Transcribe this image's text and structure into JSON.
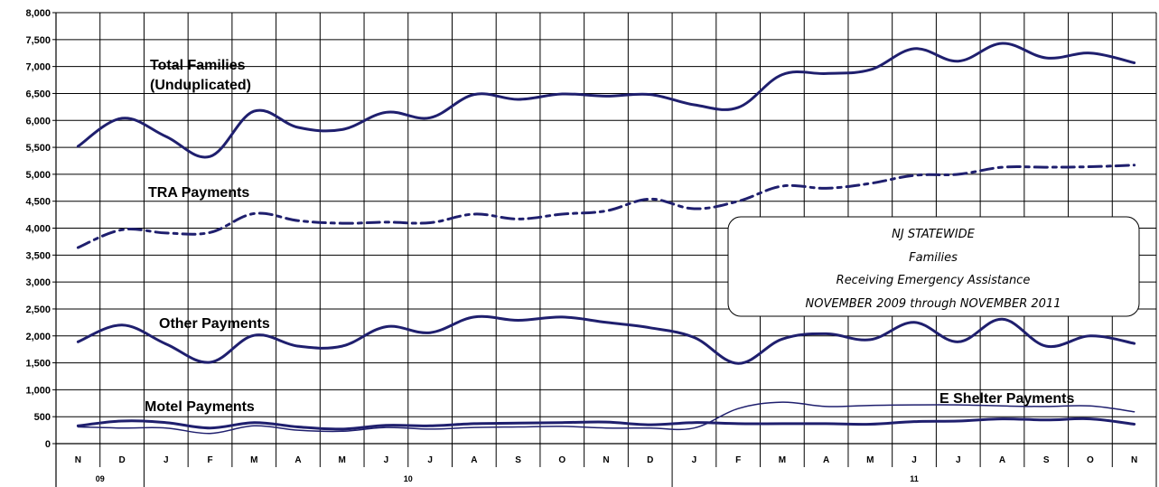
{
  "chart_data": {
    "type": "line",
    "title_lines": [
      "NJ STATEWIDE",
      "Families",
      "Receiving Emergency Assistance",
      "NOVEMBER 2009 through NOVEMBER 2011"
    ],
    "categories": [
      "N",
      "D",
      "J",
      "F",
      "M",
      "A",
      "M",
      "J",
      "J",
      "A",
      "S",
      "O",
      "N",
      "D",
      "J",
      "F",
      "M",
      "A",
      "M",
      "J",
      "J",
      "A",
      "S",
      "O",
      "N"
    ],
    "year_groups": [
      {
        "label": "09",
        "start": 0,
        "end": 1
      },
      {
        "label": "10",
        "start": 2,
        "end": 13
      },
      {
        "label": "11",
        "start": 14,
        "end": 24
      }
    ],
    "ylim": [
      0,
      8000
    ],
    "yticks": [
      "0",
      "500",
      "1,000",
      "1,500",
      "2,000",
      "2,500",
      "3,000",
      "3,500",
      "4,000",
      "4,500",
      "5,000",
      "5,500",
      "6,000",
      "6,500",
      "7,000",
      "7,500",
      "8,000"
    ],
    "grid": true,
    "series": [
      {
        "name": "Total Families (Unduplicated)",
        "label_lines": [
          "Total Families",
          "(Unduplicated)"
        ],
        "style": "solid",
        "color": "#1f1f6e",
        "values": [
          5520,
          6040,
          5700,
          5330,
          6170,
          5870,
          5830,
          6150,
          6050,
          6480,
          6390,
          6490,
          6450,
          6480,
          6290,
          6240,
          6850,
          6870,
          6940,
          7330,
          7100,
          7430,
          7160,
          7250,
          7070
        ]
      },
      {
        "name": "TRA Payments",
        "label_lines": [
          "TRA Payments"
        ],
        "style": "dashdot",
        "color": "#1f1f6e",
        "values": [
          3640,
          3970,
          3910,
          3920,
          4270,
          4140,
          4090,
          4110,
          4100,
          4260,
          4170,
          4260,
          4320,
          4540,
          4360,
          4500,
          4780,
          4740,
          4830,
          4980,
          5000,
          5130,
          5130,
          5140,
          5170
        ]
      },
      {
        "name": "Other Payments",
        "label_lines": [
          "Other Payments"
        ],
        "style": "solid",
        "color": "#1f1f6e",
        "values": [
          1890,
          2200,
          1850,
          1510,
          2010,
          1810,
          1810,
          2170,
          2060,
          2350,
          2290,
          2350,
          2250,
          2150,
          1970,
          1490,
          1940,
          2040,
          1930,
          2250,
          1890,
          2310,
          1810,
          2000,
          1860
        ]
      },
      {
        "name": "Motel Payments",
        "label_lines": [
          "Motel Payments"
        ],
        "style": "solid",
        "color": "#1f1f6e",
        "values": [
          330,
          420,
          390,
          290,
          390,
          310,
          270,
          340,
          330,
          370,
          380,
          390,
          400,
          350,
          390,
          370,
          370,
          370,
          360,
          410,
          420,
          460,
          440,
          460,
          360
        ]
      },
      {
        "name": "E Shelter Payments",
        "label_lines": [
          "E Shelter Payments"
        ],
        "style": "thin",
        "color": "#1f1f6e",
        "values": [
          310,
          290,
          290,
          190,
          330,
          250,
          230,
          300,
          270,
          300,
          310,
          320,
          290,
          290,
          290,
          650,
          770,
          690,
          710,
          720,
          720,
          700,
          690,
          700,
          590
        ]
      }
    ]
  }
}
